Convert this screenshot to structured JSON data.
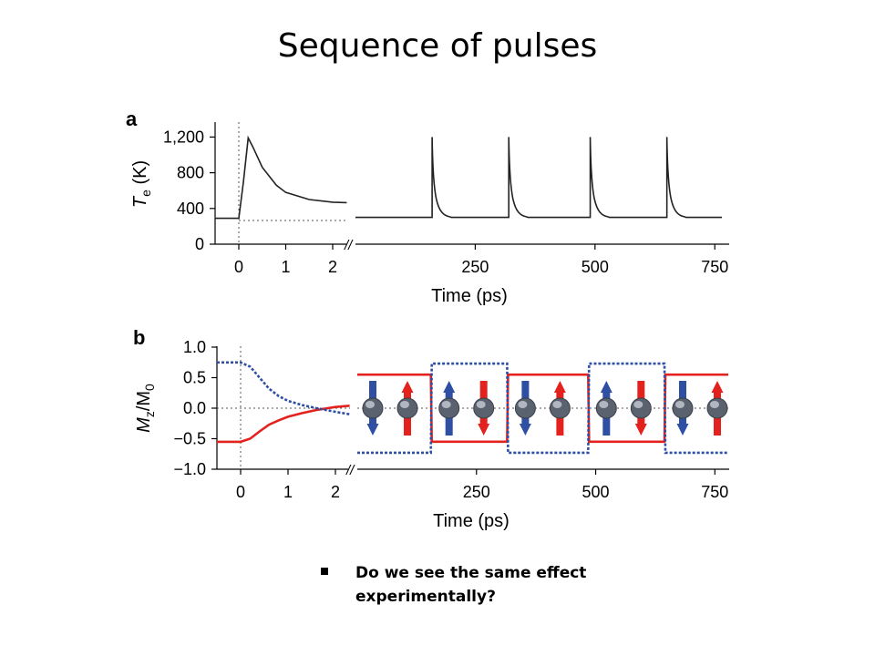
{
  "slide": {
    "title": "Sequence of pulses",
    "bullet": "Do we see the same effect experimentally?"
  },
  "chart_data": [
    {
      "type": "line",
      "panel_label": "a",
      "ylabel": "Te (K)",
      "ylabel_main": "T",
      "ylabel_sub": "e",
      "ylabel_unit": " (K)",
      "xlabel": "Time (ps)",
      "ylim": [
        0,
        1500
      ],
      "yticks": [
        "1,200",
        "800",
        "400",
        "0"
      ],
      "yticks_values": [
        1200,
        800,
        400,
        0
      ],
      "x_break": true,
      "segment_short": {
        "xlim": [
          -0.5,
          2.3
        ],
        "xticks": [
          "0",
          "1",
          "2"
        ],
        "xticks_values": [
          0,
          1,
          2
        ],
        "x": [
          -0.5,
          0.0,
          0.1,
          0.2,
          0.3,
          0.5,
          0.8,
          1.0,
          1.5,
          2.0,
          2.3
        ],
        "y": [
          290,
          290,
          700,
          1190,
          1090,
          860,
          660,
          580,
          500,
          470,
          465
        ]
      },
      "segment_long": {
        "xlim": [
          0,
          780
        ],
        "xticks": [
          "250",
          "500",
          "750"
        ],
        "xticks_values": [
          250,
          500,
          750
        ],
        "pulse_times": [
          160,
          320,
          490,
          650
        ],
        "baseline": 300,
        "peak": 1200
      },
      "color": "#222222"
    },
    {
      "type": "line",
      "panel_label": "b",
      "ylabel": "Mz/M0",
      "ylabel_main": "M",
      "ylabel_sub1": "z",
      "ylabel_mid": "/M",
      "ylabel_sub2": "0",
      "xlabel": "Time (ps)",
      "ylim": [
        -1.0,
        1.0
      ],
      "yticks": [
        "1.0",
        "0.5",
        "0.0",
        "−0.5",
        "−1.0"
      ],
      "yticks_values": [
        1.0,
        0.5,
        0.0,
        -0.5,
        -1.0
      ],
      "x_break": true,
      "segment_short": {
        "xlim": [
          -0.5,
          2.3
        ],
        "xticks": [
          "0",
          "1",
          "2"
        ],
        "xticks_values": [
          0,
          1,
          2
        ],
        "x": [
          -0.5,
          0.0,
          0.2,
          0.4,
          0.6,
          0.8,
          1.0,
          1.3,
          1.6,
          2.0,
          2.3
        ],
        "series": [
          {
            "color": "#e3221e",
            "values": [
              -0.55,
              -0.55,
              -0.5,
              -0.38,
              -0.27,
              -0.2,
              -0.14,
              -0.08,
              -0.03,
              0.02,
              0.04
            ]
          },
          {
            "color": "#2f4fa3",
            "values": [
              0.75,
              0.75,
              0.68,
              0.5,
              0.32,
              0.2,
              0.12,
              0.05,
              0.0,
              -0.06,
              -0.1
            ]
          }
        ]
      },
      "segment_long": {
        "xlim": [
          0,
          780
        ],
        "xticks": [
          "250",
          "500",
          "750"
        ],
        "xticks_values": [
          250,
          500,
          750
        ],
        "switch_times": [
          0,
          160,
          320,
          490,
          650,
          780
        ],
        "series": [
          {
            "color": "#e3221e",
            "levels": [
              0.55,
              -0.55,
              0.55,
              -0.55,
              0.55
            ]
          },
          {
            "color": "#2f4fa3",
            "levels": [
              -0.73,
              0.73,
              -0.73,
              0.73,
              -0.73
            ]
          }
        ]
      },
      "spin_pairs": [
        {
          "blue": "down",
          "red": "up"
        },
        {
          "blue": "up",
          "red": "down"
        },
        {
          "blue": "down",
          "red": "up"
        },
        {
          "blue": "up",
          "red": "down"
        },
        {
          "blue": "down",
          "red": "up"
        }
      ]
    }
  ]
}
